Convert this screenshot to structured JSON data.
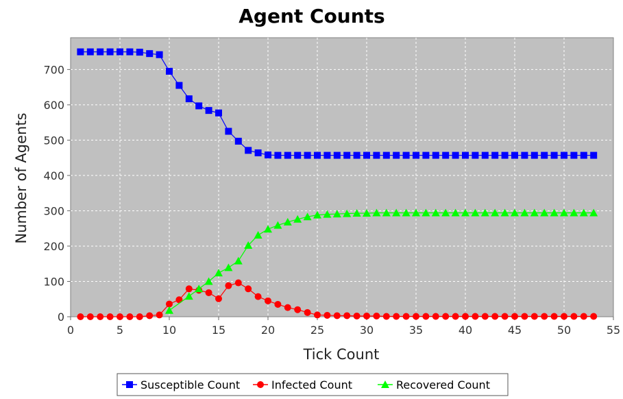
{
  "chart_data": {
    "type": "line",
    "title": "Agent Counts",
    "xlabel": "Tick Count",
    "ylabel": "Number of Agents",
    "xlim": [
      0,
      55
    ],
    "ylim": [
      0,
      790
    ],
    "xticks": [
      0,
      5,
      10,
      15,
      20,
      25,
      30,
      35,
      40,
      45,
      50,
      55
    ],
    "yticks": [
      0,
      100,
      200,
      300,
      400,
      500,
      600,
      700
    ],
    "grid": true,
    "legend": "bottom",
    "background": "#c0c0c0",
    "x": [
      1,
      2,
      3,
      4,
      5,
      6,
      7,
      8,
      9,
      10,
      11,
      12,
      13,
      14,
      15,
      16,
      17,
      18,
      19,
      20,
      21,
      22,
      23,
      24,
      25,
      26,
      27,
      28,
      29,
      30,
      31,
      32,
      33,
      34,
      35,
      36,
      37,
      38,
      39,
      40,
      41,
      42,
      43,
      44,
      45,
      46,
      47,
      48,
      49,
      50,
      51,
      52,
      53
    ],
    "series": [
      {
        "name": "Susceptible Count",
        "color": "#0000ff",
        "marker": "square",
        "values": [
          750,
          750,
          750,
          750,
          750,
          750,
          749,
          745,
          742,
          695,
          655,
          617,
          597,
          584,
          577,
          525,
          497,
          471,
          464,
          458,
          457,
          457,
          457,
          457,
          457,
          457,
          457,
          457,
          457,
          457,
          457,
          457,
          457,
          457,
          457,
          457,
          457,
          457,
          457,
          457,
          457,
          457,
          457,
          457,
          457,
          457,
          457,
          457,
          457,
          457,
          457,
          457,
          457
        ]
      },
      {
        "name": "Infected Count",
        "color": "#ff0000",
        "marker": "circle",
        "values": [
          0,
          0,
          0,
          0,
          0,
          0,
          0,
          3,
          5,
          36,
          48,
          79,
          75,
          68,
          51,
          88,
          96,
          79,
          57,
          45,
          35,
          26,
          20,
          12,
          5,
          4,
          3,
          3,
          2,
          2,
          2,
          1,
          1,
          1,
          1,
          1,
          1,
          1,
          1,
          1,
          1,
          1,
          1,
          1,
          1,
          1,
          1,
          1,
          1,
          1,
          1,
          1,
          1
        ]
      },
      {
        "name": "Recovered Count",
        "color": "#00ff00",
        "marker": "triangle",
        "values": [
          null,
          null,
          null,
          null,
          null,
          null,
          null,
          null,
          null,
          18,
          null,
          58,
          79,
          100,
          124,
          139,
          158,
          202,
          231,
          248,
          259,
          268,
          276,
          283,
          288,
          290,
          291,
          292,
          293,
          293,
          294,
          294,
          294,
          294,
          294,
          294,
          294,
          294,
          294,
          294,
          294,
          294,
          294,
          294,
          294,
          294,
          294,
          294,
          294,
          294,
          294,
          294,
          294
        ]
      }
    ]
  }
}
